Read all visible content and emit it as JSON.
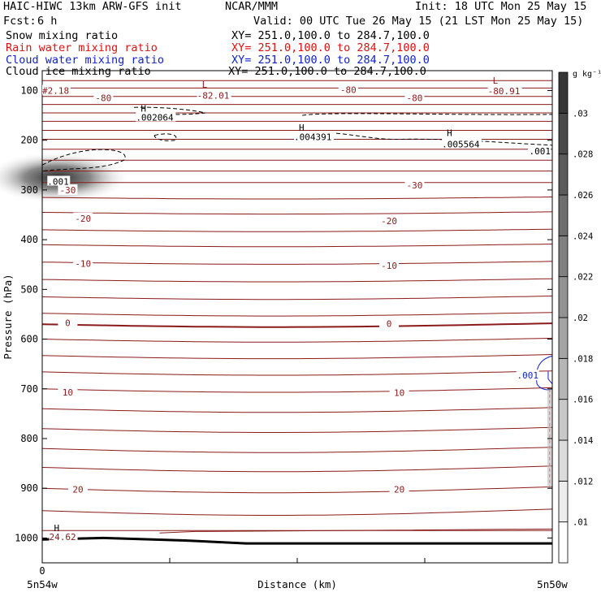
{
  "header": {
    "title": "HAIC-HIWC 13km ARW-GFS init",
    "org": "NCAR/MMM",
    "init": "Init: 18 UTC Mon 25 May 15",
    "fcst_label": "Fcst:",
    "fcst_value": "6 h",
    "valid": "Valid: 00 UTC Tue 26 May 15 (21 LST Mon 25 May 15)"
  },
  "fields": [
    {
      "name": "Snow mixing ratio",
      "xy": "XY= 251.0,100.0 to 284.7,100.0",
      "color": "#000000"
    },
    {
      "name": "Rain water mixing ratio",
      "xy": "XY= 251.0,100.0 to 284.7,100.0",
      "color": "#dd1111"
    },
    {
      "name": "Cloud water mixing ratio",
      "xy": "XY= 251.0,100.0 to 284.7,100.0",
      "color": "#1122cc"
    },
    {
      "name": "Cloud ice mixing ratio",
      "xy": "XY= 251.0,100.0 to 284.7,100.0",
      "color": "#000000"
    }
  ],
  "chart_data": {
    "type": "contour",
    "xlabel": "Distance (km)",
    "ylabel": "Pressure (hPa)",
    "x_ticks": [
      {
        "label": "0",
        "sublabel": "5n54w"
      },
      {
        "label": "",
        "sublabel": ""
      },
      {
        "label": "",
        "sublabel": ""
      },
      {
        "label": "",
        "sublabel": ""
      },
      {
        "label": "",
        "sublabel": "5n50w"
      }
    ],
    "y_ticks": [
      100,
      200,
      300,
      400,
      500,
      600,
      700,
      800,
      900,
      1000
    ],
    "ylim": [
      60,
      1050
    ],
    "temperature_labels": [
      {
        "text": "-80",
        "x": 0.12,
        "p": 115
      },
      {
        "text": "-80",
        "x": 0.6,
        "p": 98
      },
      {
        "text": "-80",
        "x": 0.73,
        "p": 115
      },
      {
        "text": "-30",
        "x": 0.73,
        "p": 290
      },
      {
        "text": "-30",
        "x": 0.05,
        "p": 300
      },
      {
        "text": "-20",
        "x": 0.08,
        "p": 357
      },
      {
        "text": "-20",
        "x": 0.68,
        "p": 362
      },
      {
        "text": "-10",
        "x": 0.08,
        "p": 448
      },
      {
        "text": "-10",
        "x": 0.68,
        "p": 452
      },
      {
        "text": "0",
        "x": 0.05,
        "p": 567
      },
      {
        "text": "0",
        "x": 0.68,
        "p": 569
      },
      {
        "text": "10",
        "x": 0.05,
        "p": 707
      },
      {
        "text": "10",
        "x": 0.7,
        "p": 708
      },
      {
        "text": "20",
        "x": 0.07,
        "p": 902
      },
      {
        "text": "20",
        "x": 0.7,
        "p": 902
      }
    ],
    "extrema_labels": [
      {
        "symbol": "L",
        "value": "-82.01",
        "x": 0.31,
        "p": 88,
        "vp": 110
      },
      {
        "symbol": "L",
        "value": "-80.91",
        "x": 0.88,
        "p": 80,
        "vp": 101
      },
      {
        "symbol": "H",
        "value": ".002064",
        "x": 0.19,
        "p": 136,
        "vp": 154
      },
      {
        "symbol": "H",
        "value": ".004391",
        "x": 0.5,
        "p": 174,
        "vp": 193
      },
      {
        "symbol": "H",
        "value": ".005564",
        "x": 0.79,
        "p": 185,
        "vp": 208
      },
      {
        "symbol": "",
        "value": ".001",
        "x": 0.98,
        "p": 222,
        "vp": 222
      },
      {
        "symbol": "",
        "value": ".001",
        "x": 0.01,
        "p": 283,
        "vp": 283
      },
      {
        "symbol": "",
        "value": "#2.18",
        "x": 0.0,
        "p": 100,
        "vp": 100
      },
      {
        "symbol": "H",
        "value": "24.62",
        "x": 0.02,
        "p": 980,
        "vp": 998
      }
    ],
    "cloud_water_label": {
      "text": ".001",
      "x": 0.955,
      "p": 673
    },
    "colorbar": {
      "unit": "g kg⁻¹",
      "levels": [
        ".01",
        ".012",
        ".014",
        ".016",
        ".018",
        ".02",
        ".022",
        ".024",
        ".026",
        ".028",
        ".03"
      ]
    }
  }
}
